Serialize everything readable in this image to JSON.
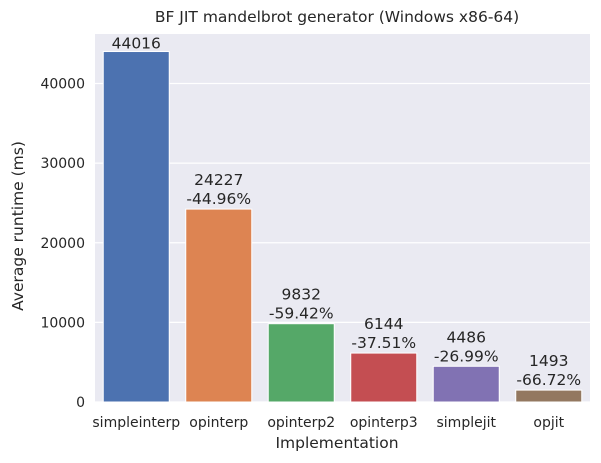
{
  "chart_data": {
    "type": "bar",
    "title": "BF JIT mandelbrot generator (Windows x86-64)",
    "xlabel": "Implementation",
    "ylabel": "Average runtime (ms)",
    "ylim": [
      0,
      46217
    ],
    "yticks": [
      0,
      10000,
      20000,
      30000,
      40000
    ],
    "grid": true,
    "legend": "none",
    "categories": [
      "simpleinterp",
      "opinterp",
      "opinterp2",
      "opinterp3",
      "simplejit",
      "opjit"
    ],
    "values": [
      44016,
      24227,
      9832,
      6144,
      4486,
      1493
    ],
    "value_labels": [
      "44016",
      "24227",
      "9832",
      "6144",
      "4486",
      "1493"
    ],
    "change_labels": [
      "",
      "-44.96%",
      "-59.42%",
      "-37.51%",
      "-26.99%",
      "-66.72%"
    ],
    "colors": [
      "#4c72b0",
      "#dd8452",
      "#55a868",
      "#c44e52",
      "#8172b3",
      "#937860"
    ],
    "background_color": "#eaeaf2",
    "grid_color": "#ffffff"
  }
}
